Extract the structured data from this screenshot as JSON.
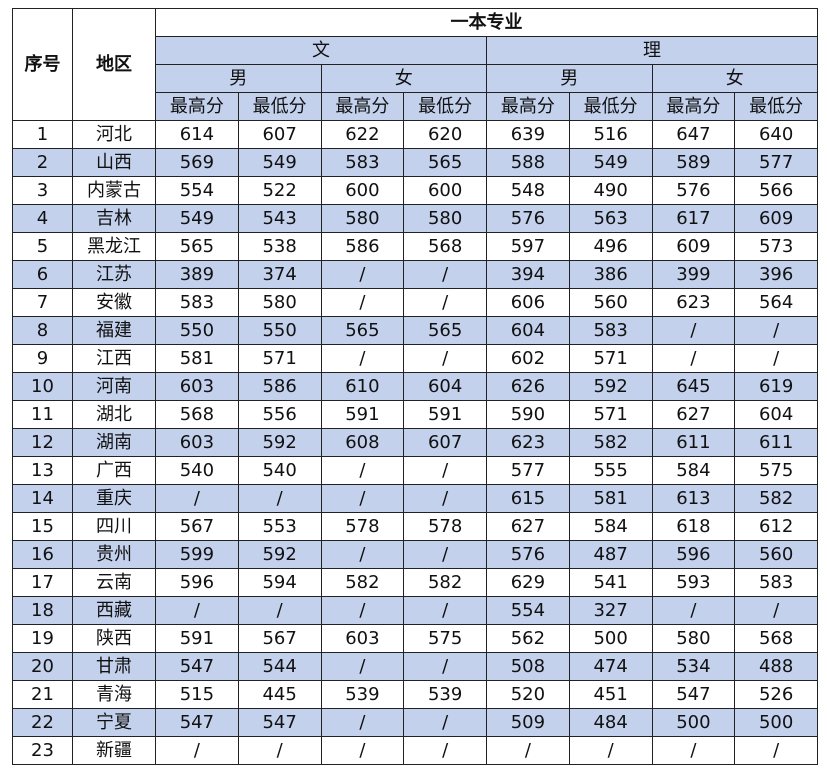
{
  "header": {
    "title": "一本专业",
    "seq": "序号",
    "region": "地区",
    "groups": [
      {
        "name": "文",
        "genders": [
          {
            "name": "男",
            "cols": [
              "最高分",
              "最低分"
            ]
          },
          {
            "name": "女",
            "cols": [
              "最高分",
              "最低分"
            ]
          }
        ]
      },
      {
        "name": "理",
        "genders": [
          {
            "name": "男",
            "cols": [
              "最高分",
              "最低分"
            ]
          },
          {
            "name": "女",
            "cols": [
              "最高分",
              "最低分"
            ]
          }
        ]
      }
    ]
  },
  "table": {
    "rows": [
      [
        1,
        "河北",
        614,
        607,
        622,
        620,
        639,
        516,
        647,
        640
      ],
      [
        2,
        "山西",
        569,
        549,
        583,
        565,
        588,
        549,
        589,
        577
      ],
      [
        3,
        "内蒙古",
        554,
        522,
        600,
        600,
        548,
        490,
        576,
        566
      ],
      [
        4,
        "吉林",
        549,
        543,
        580,
        580,
        576,
        563,
        617,
        609
      ],
      [
        5,
        "黑龙江",
        565,
        538,
        586,
        568,
        597,
        496,
        609,
        573
      ],
      [
        6,
        "江苏",
        389,
        374,
        "/",
        "/",
        394,
        386,
        399,
        396
      ],
      [
        7,
        "安徽",
        583,
        580,
        "/",
        "/",
        606,
        560,
        623,
        564
      ],
      [
        8,
        "福建",
        550,
        550,
        565,
        565,
        604,
        583,
        "/",
        "/"
      ],
      [
        9,
        "江西",
        581,
        571,
        "/",
        "/",
        602,
        571,
        "/",
        "/"
      ],
      [
        10,
        "河南",
        603,
        586,
        610,
        604,
        626,
        592,
        645,
        619
      ],
      [
        11,
        "湖北",
        568,
        556,
        591,
        591,
        590,
        571,
        627,
        604
      ],
      [
        12,
        "湖南",
        603,
        592,
        608,
        607,
        623,
        582,
        611,
        611
      ],
      [
        13,
        "广西",
        540,
        540,
        "/",
        "/",
        577,
        555,
        584,
        575
      ],
      [
        14,
        "重庆",
        "/",
        "/",
        "/",
        "/",
        615,
        581,
        613,
        582
      ],
      [
        15,
        "四川",
        567,
        553,
        578,
        578,
        627,
        584,
        618,
        612
      ],
      [
        16,
        "贵州",
        599,
        592,
        "/",
        "/",
        576,
        487,
        596,
        560
      ],
      [
        17,
        "云南",
        596,
        594,
        582,
        582,
        629,
        541,
        593,
        583
      ],
      [
        18,
        "西藏",
        "/",
        "/",
        "/",
        "/",
        554,
        327,
        "/",
        "/"
      ],
      [
        19,
        "陕西",
        591,
        567,
        603,
        575,
        562,
        500,
        580,
        568
      ],
      [
        20,
        "甘肃",
        547,
        544,
        "/",
        "/",
        508,
        474,
        534,
        488
      ],
      [
        21,
        "青海",
        515,
        445,
        539,
        539,
        520,
        451,
        547,
        526
      ],
      [
        22,
        "宁夏",
        547,
        547,
        "/",
        "/",
        509,
        484,
        500,
        500
      ],
      [
        23,
        "新疆",
        "/",
        "/",
        "/",
        "/",
        "/",
        "/",
        "/",
        "/"
      ]
    ]
  }
}
